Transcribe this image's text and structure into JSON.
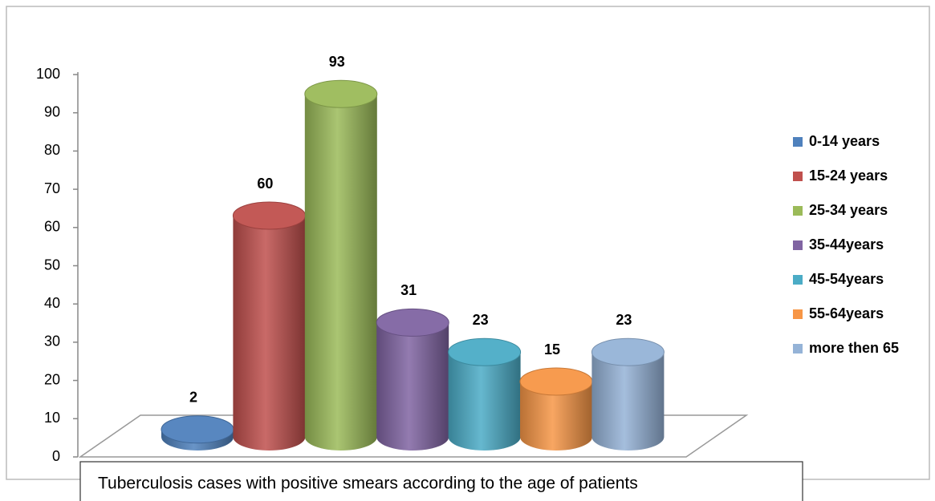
{
  "chart_data": {
    "type": "bar",
    "title": "Tuberculosis cases with positive smears  according to the age of patients",
    "series": [
      {
        "name": "0-14 years",
        "color": "#4f81bd",
        "values": [
          2
        ]
      },
      {
        "name": "15-24 years",
        "color": "#c0504d",
        "values": [
          60
        ]
      },
      {
        "name": "25-34 years",
        "color": "#9bbb59",
        "values": [
          93
        ]
      },
      {
        "name": "35-44years",
        "color": "#8064a2",
        "values": [
          31
        ]
      },
      {
        "name": "45-54years",
        "color": "#4bacc6",
        "values": [
          23
        ]
      },
      {
        "name": "55-64years",
        "color": "#f79646",
        "values": [
          15
        ]
      },
      {
        "name": "more then 65",
        "color": "#95b3d7",
        "values": [
          23
        ]
      }
    ],
    "ylim": [
      0,
      100
    ],
    "yticks": [
      0,
      10,
      20,
      30,
      40,
      50,
      60,
      70,
      80,
      90,
      100
    ],
    "grid": false,
    "legend": "right"
  }
}
